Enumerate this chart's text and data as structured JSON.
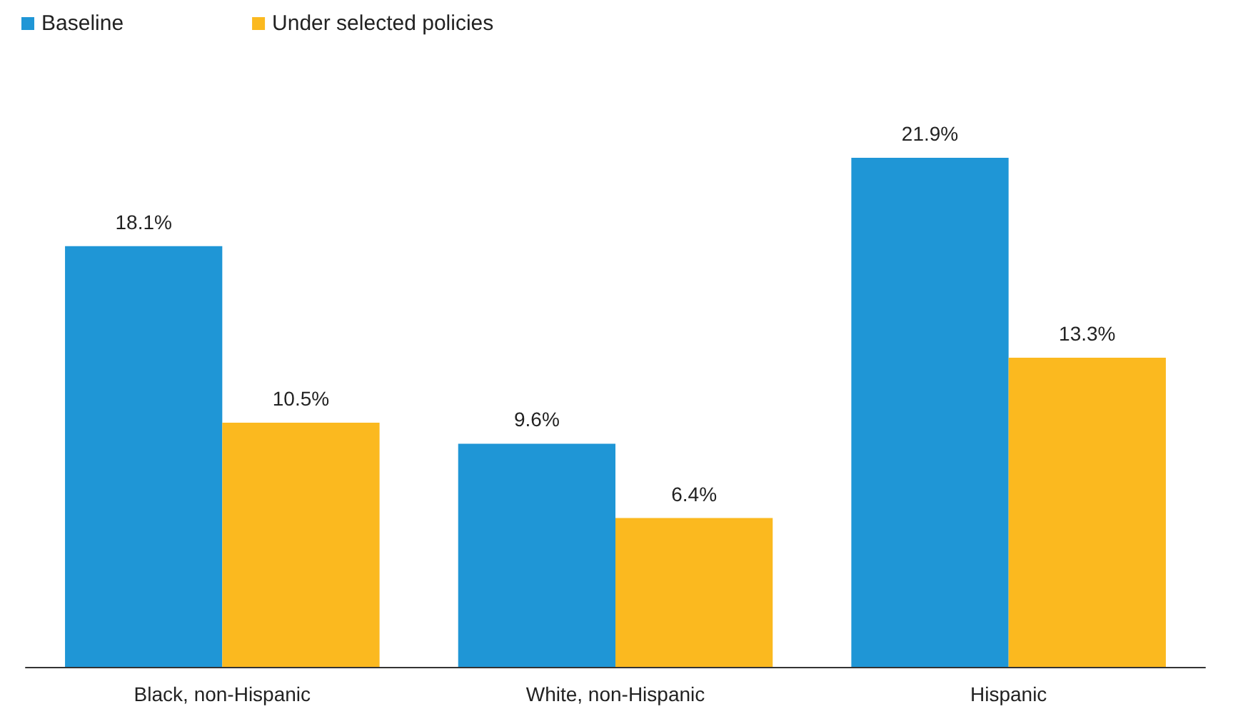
{
  "chart_data": {
    "type": "bar",
    "categories": [
      "Black, non-Hispanic",
      "White, non-Hispanic",
      "Hispanic"
    ],
    "series": [
      {
        "name": "Baseline",
        "color": "#1f96d6",
        "values": [
          18.1,
          9.6,
          21.9
        ],
        "value_labels": [
          "18.1%",
          "9.6%",
          "21.9%"
        ]
      },
      {
        "name": "Under selected policies",
        "color": "#fbb91f",
        "values": [
          10.5,
          6.4,
          13.3
        ],
        "value_labels": [
          "10.5%",
          "6.4%",
          "13.3%"
        ]
      }
    ],
    "legend": "top left"
  }
}
